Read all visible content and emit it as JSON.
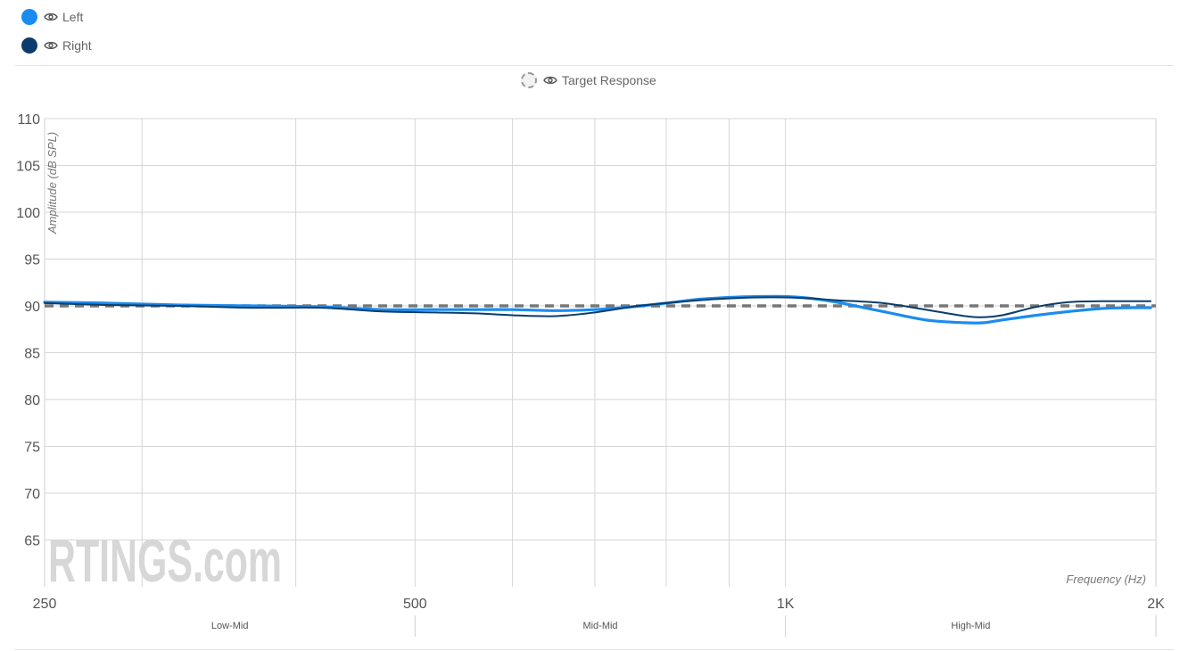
{
  "legend": {
    "items": [
      {
        "label": "Left",
        "color": "#1a8cf0",
        "icon": "eye-icon"
      },
      {
        "label": "Right",
        "color": "#0a3d6b",
        "icon": "eye-icon"
      }
    ],
    "target": {
      "label": "Target Response",
      "icon": "eye-icon"
    }
  },
  "watermark": "RTINGS.com",
  "chart_data": {
    "type": "line",
    "title": "",
    "xlabel": "Frequency (Hz)",
    "ylabel": "Amplitude (dB SPL)",
    "x_scale": "log",
    "xlim": [
      250,
      2000
    ],
    "ylim": [
      60,
      110
    ],
    "yticks": [
      65,
      70,
      75,
      80,
      85,
      90,
      95,
      100,
      105,
      110
    ],
    "xticks": [
      {
        "value": 250,
        "label": "250"
      },
      {
        "value": 500,
        "label": "500"
      },
      {
        "value": 1000,
        "label": "1K"
      },
      {
        "value": 2000,
        "label": "2K"
      }
    ],
    "minor_gridlines": [
      300,
      400,
      600,
      700,
      800,
      900
    ],
    "grid": true,
    "bands": [
      {
        "label": "Low-Mid",
        "from": 250,
        "to": 500
      },
      {
        "label": "Mid-Mid",
        "from": 500,
        "to": 1000
      },
      {
        "label": "High-Mid",
        "from": 1000,
        "to": 2000
      }
    ],
    "series": [
      {
        "name": "Left",
        "color": "#1a8cf0",
        "x": [
          250,
          280,
          320,
          370,
          420,
          470,
          520,
          560,
          600,
          650,
          700,
          750,
          800,
          850,
          900,
          950,
          1000,
          1050,
          1100,
          1200,
          1300,
          1400,
          1450,
          1500,
          1600,
          1700,
          1800,
          1900,
          1980
        ],
        "y": [
          90.4,
          90.3,
          90.1,
          90.0,
          89.9,
          89.6,
          89.6,
          89.6,
          89.6,
          89.5,
          89.6,
          89.9,
          90.3,
          90.7,
          90.9,
          91.0,
          91.0,
          90.8,
          90.4,
          89.4,
          88.5,
          88.2,
          88.2,
          88.5,
          89.0,
          89.4,
          89.7,
          89.8,
          89.8
        ]
      },
      {
        "name": "Right",
        "color": "#0a3d6b",
        "x": [
          250,
          280,
          320,
          370,
          420,
          470,
          520,
          560,
          600,
          650,
          700,
          750,
          800,
          850,
          900,
          950,
          1000,
          1050,
          1100,
          1200,
          1300,
          1400,
          1450,
          1500,
          1600,
          1700,
          1800,
          1900,
          1980
        ],
        "y": [
          90.3,
          90.1,
          90.0,
          89.8,
          89.8,
          89.4,
          89.3,
          89.2,
          89.0,
          88.9,
          89.3,
          89.9,
          90.3,
          90.6,
          90.8,
          90.9,
          90.9,
          90.8,
          90.6,
          90.3,
          89.6,
          88.9,
          88.8,
          89.0,
          89.9,
          90.4,
          90.5,
          90.5,
          90.5
        ]
      },
      {
        "name": "Target Response",
        "color": "#777777",
        "dashed": true,
        "x": [
          250,
          2000
        ],
        "y": [
          90,
          90
        ]
      }
    ]
  }
}
